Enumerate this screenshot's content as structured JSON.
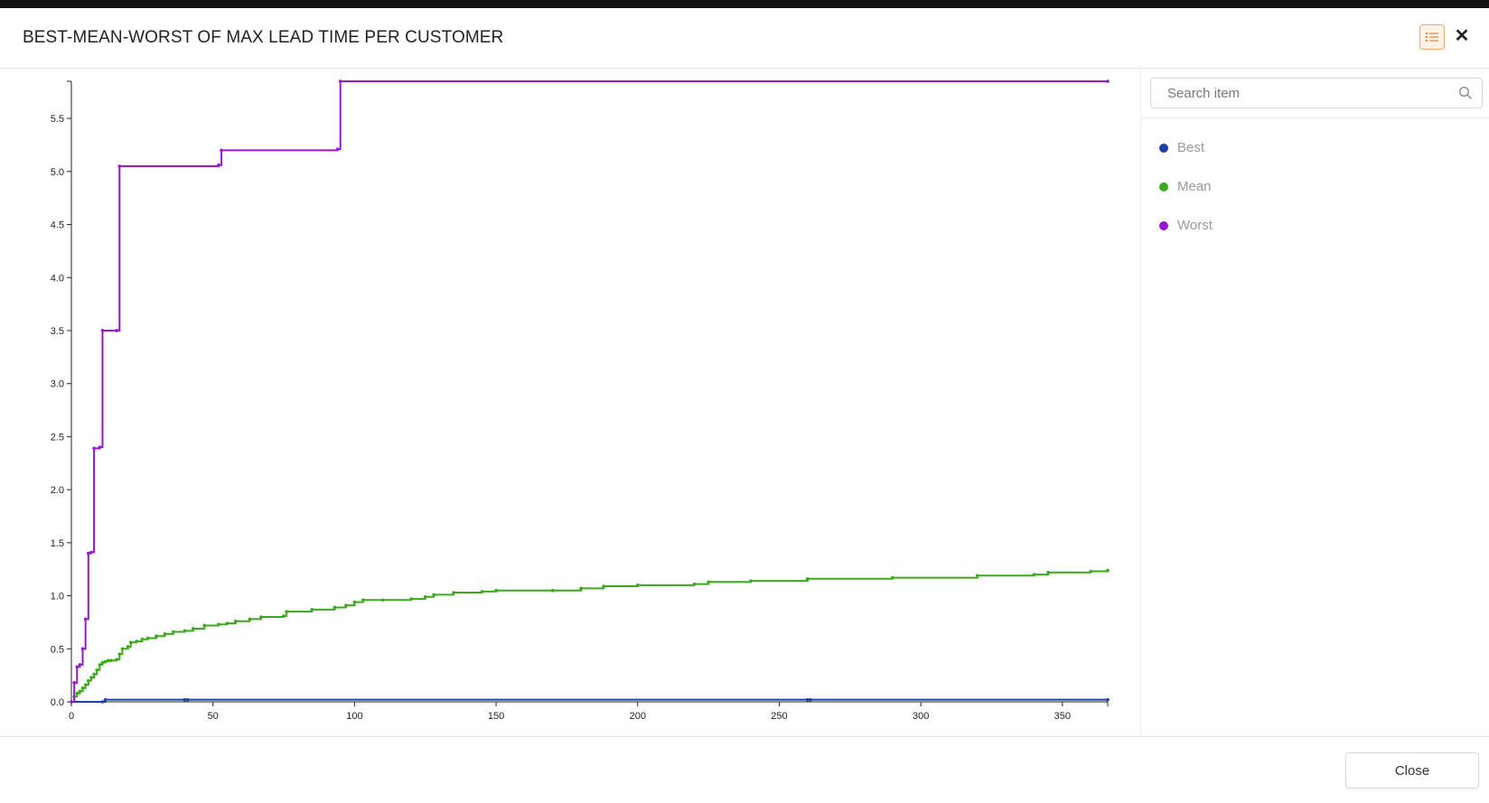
{
  "dialog": {
    "title": "BEST-MEAN-WORST OF MAX LEAD TIME PER CUSTOMER",
    "close_button_label": "Close"
  },
  "legend_panel": {
    "search_placeholder": "Search item",
    "items": [
      {
        "label": "Best",
        "color": "#1f3fa8"
      },
      {
        "label": "Mean",
        "color": "#3aaa1a"
      },
      {
        "label": "Worst",
        "color": "#9a16d0"
      }
    ]
  },
  "chart_data": {
    "type": "line",
    "title": "",
    "xlabel": "",
    "ylabel": "",
    "xlim": [
      0,
      366
    ],
    "ylim": [
      0,
      5.85
    ],
    "x_ticks": [
      0,
      50,
      100,
      150,
      200,
      250,
      300,
      350
    ],
    "y_ticks": [
      0.0,
      0.5,
      1.0,
      1.5,
      2.0,
      2.5,
      3.0,
      3.5,
      4.0,
      4.5,
      5.0,
      5.5
    ],
    "y_tick_labels": [
      "0.0",
      "0.5",
      "1.0",
      "1.5",
      "2.0",
      "2.5",
      "3.0",
      "3.5",
      "4.0",
      "4.5",
      "5.0",
      "5.5"
    ],
    "x_tick_labels": [
      "0",
      "50",
      "100",
      "150",
      "200",
      "250",
      "300",
      "350"
    ],
    "step": true,
    "grid": false,
    "series": [
      {
        "name": "Best",
        "color": "#1f3fa8",
        "points": [
          [
            0,
            0
          ],
          [
            11,
            0
          ],
          [
            12,
            0.02
          ],
          [
            40,
            0.02
          ],
          [
            41,
            0.02
          ],
          [
            260,
            0.02
          ],
          [
            261,
            0.02
          ],
          [
            366,
            0.02
          ]
        ]
      },
      {
        "name": "Mean",
        "color": "#3aaa1a",
        "points": [
          [
            0,
            0
          ],
          [
            1,
            0.05
          ],
          [
            2,
            0.08
          ],
          [
            3,
            0.1
          ],
          [
            4,
            0.13
          ],
          [
            5,
            0.16
          ],
          [
            6,
            0.2
          ],
          [
            7,
            0.23
          ],
          [
            8,
            0.26
          ],
          [
            9,
            0.3
          ],
          [
            10,
            0.35
          ],
          [
            11,
            0.37
          ],
          [
            12,
            0.38
          ],
          [
            13,
            0.39
          ],
          [
            14,
            0.39
          ],
          [
            16,
            0.4
          ],
          [
            17,
            0.45
          ],
          [
            18,
            0.5
          ],
          [
            20,
            0.52
          ],
          [
            21,
            0.56
          ],
          [
            23,
            0.57
          ],
          [
            25,
            0.59
          ],
          [
            27,
            0.6
          ],
          [
            30,
            0.62
          ],
          [
            33,
            0.64
          ],
          [
            36,
            0.66
          ],
          [
            40,
            0.67
          ],
          [
            43,
            0.69
          ],
          [
            47,
            0.72
          ],
          [
            52,
            0.73
          ],
          [
            55,
            0.74
          ],
          [
            58,
            0.76
          ],
          [
            63,
            0.78
          ],
          [
            67,
            0.8
          ],
          [
            75,
            0.81
          ],
          [
            76,
            0.85
          ],
          [
            85,
            0.87
          ],
          [
            93,
            0.89
          ],
          [
            97,
            0.91
          ],
          [
            100,
            0.94
          ],
          [
            103,
            0.96
          ],
          [
            110,
            0.96
          ],
          [
            120,
            0.97
          ],
          [
            125,
            0.99
          ],
          [
            128,
            1.01
          ],
          [
            135,
            1.03
          ],
          [
            145,
            1.04
          ],
          [
            150,
            1.05
          ],
          [
            170,
            1.05
          ],
          [
            180,
            1.07
          ],
          [
            188,
            1.09
          ],
          [
            200,
            1.1
          ],
          [
            220,
            1.11
          ],
          [
            225,
            1.13
          ],
          [
            240,
            1.14
          ],
          [
            260,
            1.16
          ],
          [
            290,
            1.17
          ],
          [
            320,
            1.19
          ],
          [
            340,
            1.2
          ],
          [
            345,
            1.22
          ],
          [
            360,
            1.23
          ],
          [
            366,
            1.24
          ]
        ]
      },
      {
        "name": "Worst",
        "color": "#9a16d0",
        "points": [
          [
            0,
            0
          ],
          [
            1,
            0.18
          ],
          [
            2,
            0.33
          ],
          [
            3,
            0.35
          ],
          [
            4,
            0.5
          ],
          [
            5,
            0.78
          ],
          [
            6,
            1.4
          ],
          [
            7,
            1.41
          ],
          [
            8,
            2.39
          ],
          [
            10,
            2.4
          ],
          [
            11,
            3.5
          ],
          [
            16,
            3.5
          ],
          [
            17,
            5.05
          ],
          [
            52,
            5.06
          ],
          [
            53,
            5.2
          ],
          [
            94,
            5.21
          ],
          [
            95,
            5.85
          ],
          [
            366,
            5.85
          ]
        ]
      }
    ]
  }
}
